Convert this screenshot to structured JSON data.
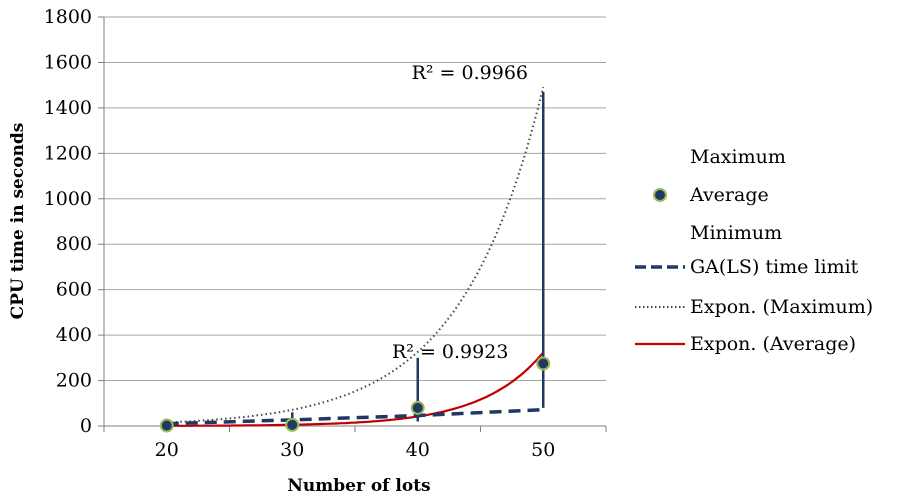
{
  "chart_data": {
    "type": "scatter",
    "xlabel": "Number of lots",
    "ylabel": "CPU time in seconds",
    "x": [
      20,
      30,
      40,
      50
    ],
    "xlim": [
      15,
      55
    ],
    "ylim": [
      0,
      1800
    ],
    "yticks": [
      0,
      200,
      400,
      600,
      800,
      1000,
      1200,
      1400,
      1600,
      1800
    ],
    "grid": "horizontal",
    "legend_position": "right",
    "series": [
      {
        "name": "Maximum",
        "values": [
          5,
          60,
          300,
          1470
        ],
        "style": "high-bar"
      },
      {
        "name": "Average",
        "values": [
          2,
          5,
          80,
          275
        ],
        "style": "marker",
        "color": "#1f3864",
        "edge": "#9bbb59"
      },
      {
        "name": "Minimum",
        "values": [
          1,
          2,
          20,
          80
        ],
        "style": "low-bar"
      },
      {
        "name": "GA(LS) time limit",
        "values": [
          10,
          27,
          46,
          72
        ],
        "style": "dashed",
        "color": "#1f3864"
      },
      {
        "name": "Expon. (Maximum)",
        "style": "dotted",
        "color": "#444444",
        "fit": {
          "a": 0.7465,
          "b": 0.152
        }
      },
      {
        "name": "Expon. (Average)",
        "style": "solid",
        "color": "#c00000",
        "fit": {
          "a": 0.01185,
          "b": 0.2043
        }
      }
    ],
    "annotations": [
      {
        "text": "R² = 0.9966",
        "series": "Expon. (Maximum)"
      },
      {
        "text": "R² = 0.9923",
        "series": "Expon. (Average)"
      }
    ],
    "colors": {
      "bar": "#1f3864",
      "grid": "#a6a6a6",
      "axis": "#808080"
    }
  }
}
